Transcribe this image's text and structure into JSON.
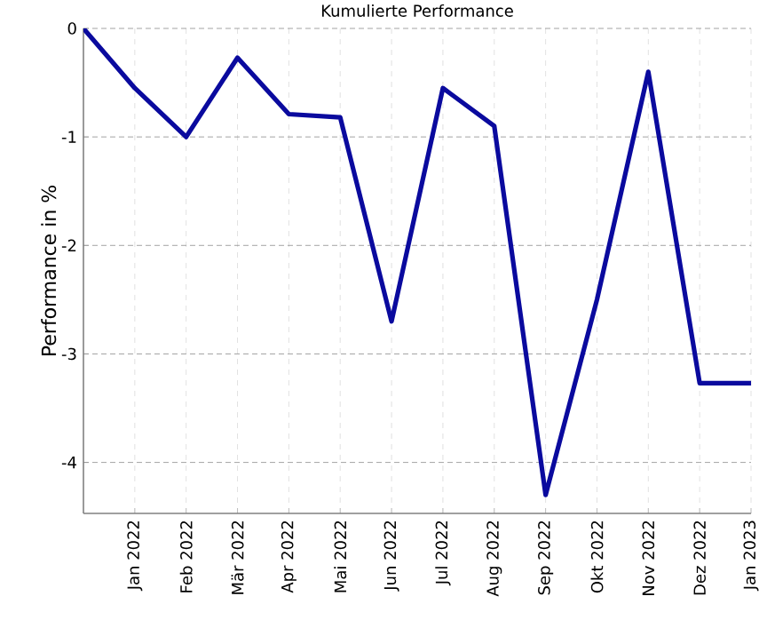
{
  "chart_data": {
    "type": "line",
    "title": "Kumulierte Performance",
    "ylabel": "Performance in %",
    "x": [
      "2021-12",
      "2022-01",
      "2022-02",
      "2022-03",
      "2022-04",
      "2022-05",
      "2022-06",
      "2022-07",
      "2022-08",
      "2022-09",
      "2022-10",
      "2022-11",
      "2022-12",
      "2023-01"
    ],
    "series": [
      {
        "color": "#0a0a9e",
        "values": [
          0,
          -0.55,
          -1.0,
          -0.27,
          -0.79,
          -0.82,
          -2.7,
          -0.55,
          -0.9,
          -4.3,
          -2.5,
          -0.4,
          -3.27,
          -3.27
        ]
      }
    ],
    "xlim": [
      "2021-12",
      "2023-01"
    ],
    "ylim": [
      -4.47,
      0
    ],
    "xticks": [
      {
        "value": "2022-01",
        "label": "Jan 2022"
      },
      {
        "value": "2022-02",
        "label": "Feb 2022"
      },
      {
        "value": "2022-03",
        "label": "Mär 2022"
      },
      {
        "value": "2022-04",
        "label": "Apr 2022"
      },
      {
        "value": "2022-05",
        "label": "Mai 2022"
      },
      {
        "value": "2022-06",
        "label": "Jun 2022"
      },
      {
        "value": "2022-07",
        "label": "Jul 2022"
      },
      {
        "value": "2022-08",
        "label": "Aug 2022"
      },
      {
        "value": "2022-09",
        "label": "Sep 2022"
      },
      {
        "value": "2022-10",
        "label": "Okt 2022"
      },
      {
        "value": "2022-11",
        "label": "Nov 2022"
      },
      {
        "value": "2022-12",
        "label": "Dez 2022"
      },
      {
        "value": "2023-01",
        "label": "Jan 2023"
      }
    ],
    "yticks": [
      0,
      -1,
      -2,
      -3,
      -4
    ],
    "grid": true,
    "marker": "none",
    "line_style": "solid"
  }
}
